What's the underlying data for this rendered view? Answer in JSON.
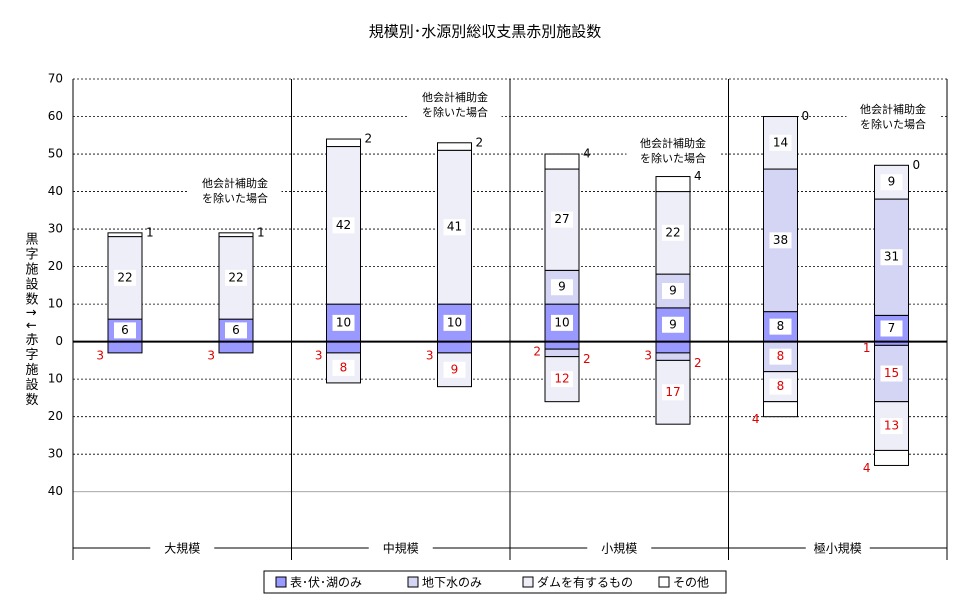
{
  "chart_data": {
    "type": "bar",
    "title": "規模別･水源別総収支黒赤別施設数",
    "y_label": "黒字施設数↑↓赤字施設数",
    "groups": [
      "大規模",
      "中規模",
      "小規模",
      "極小規模"
    ],
    "annotations": [
      [
        "他会計補助金",
        "を除いた場合"
      ],
      [
        "他会計補助金",
        "を除いた場合"
      ],
      [
        "他会計補助金",
        "を除いた場合"
      ],
      [
        "他会計補助金",
        "を除いた場合"
      ]
    ],
    "ylim": [
      -55,
      70
    ],
    "yticks": [
      70,
      60,
      50,
      40,
      30,
      20,
      10,
      0,
      {
        "value": -10,
        "label": "10"
      },
      {
        "value": -20,
        "label": "20"
      },
      {
        "value": -30,
        "label": "30"
      },
      {
        "value": -40,
        "label": "40"
      }
    ],
    "grid": true,
    "legend": "bottom",
    "series": [
      {
        "name": "表･伏･湖のみ",
        "color": "#9999ff",
        "values": [
          6,
          6,
          10,
          10,
          10,
          9,
          8,
          7
        ],
        "neg_values": [
          -3,
          -3,
          -3,
          -3,
          -2,
          -3,
          null,
          -1
        ],
        "neg_value_labels": [
          "3",
          "3",
          "3",
          "3",
          "2",
          "3",
          null,
          "1"
        ]
      },
      {
        "name": "地下水のみ",
        "color": "#d4d4f4",
        "values": [
          null,
          null,
          null,
          null,
          9,
          9,
          38,
          31
        ],
        "neg_values": [
          null,
          null,
          null,
          null,
          -2,
          -2,
          -8,
          -15
        ],
        "neg_value_labels": [
          null,
          null,
          null,
          null,
          "2",
          "2",
          "8",
          "15"
        ]
      },
      {
        "name": "ダムを有するもの",
        "color": "#eeeef8",
        "values": [
          22,
          22,
          42,
          41,
          27,
          22,
          14,
          9
        ],
        "neg_values": [
          null,
          null,
          -8,
          -9,
          -12,
          -17,
          -8,
          -13
        ],
        "neg_value_labels": [
          null,
          null,
          "8",
          "9",
          "12",
          "17",
          "8",
          "13"
        ]
      },
      {
        "name": "その他",
        "color": "#ffffff",
        "values": [
          1,
          1,
          2,
          2,
          4,
          4,
          0,
          0
        ],
        "neg_values": [
          null,
          null,
          null,
          null,
          null,
          null,
          -4,
          -4
        ],
        "neg_value_labels": [
          null,
          null,
          null,
          null,
          null,
          null,
          "4",
          "4"
        ]
      }
    ]
  }
}
